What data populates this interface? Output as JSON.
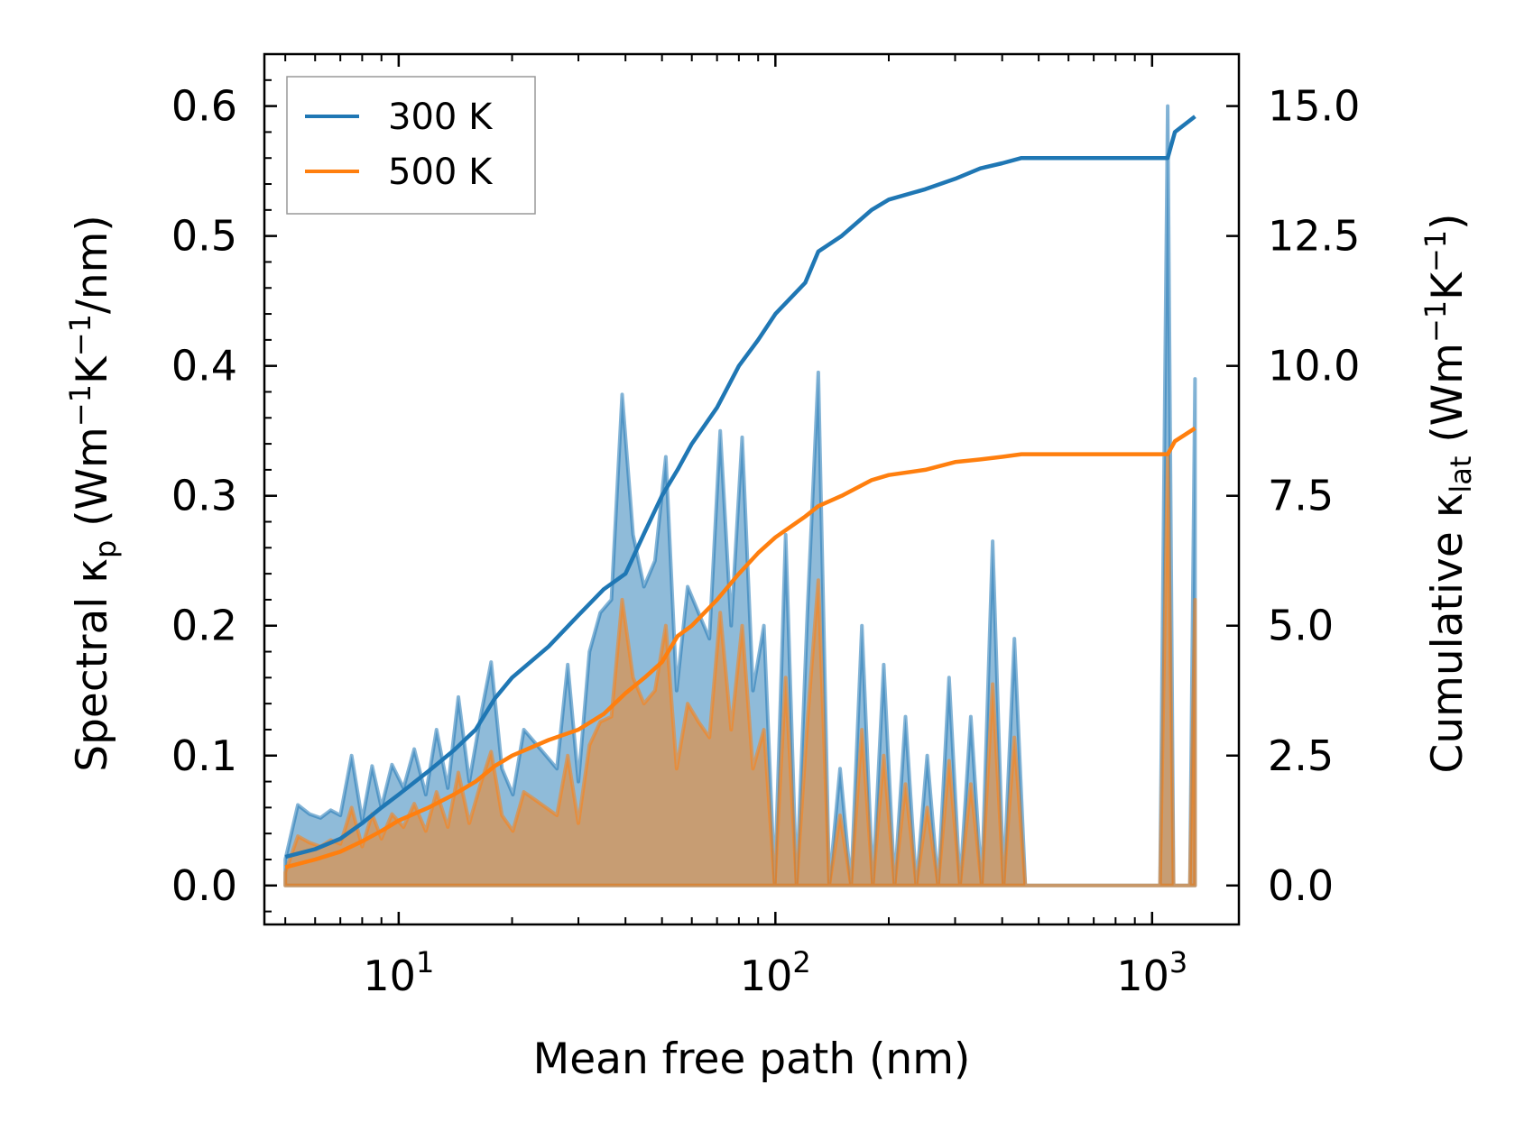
{
  "chart_data": {
    "type": "area",
    "title": "",
    "xlabel": "Mean free path (nm)",
    "ylabel_left": "Spectral κp (Wm−1K−1/nm)",
    "ylabel_right": "Cumulative κlat (Wm−1K−1)",
    "xlabel_parts": {
      "text": "Mean free path (nm)"
    },
    "ylabel_left_parts": {
      "pre": "Spectral κ",
      "sub": "p",
      "mid1": " (Wm",
      "sup1": "−1",
      "mid2": "K",
      "sup2": "−1",
      "post": "/nm)"
    },
    "ylabel_right_parts": {
      "pre": "Cumulative κ",
      "sub": "lat",
      "mid1": " (Wm",
      "sup1": "−1",
      "mid2": "K",
      "sup2": "−1",
      "post": ")"
    },
    "xscale": "log",
    "xlim": [
      4.4,
      1700
    ],
    "ylim_left": [
      -0.03,
      0.64
    ],
    "ylim_right": [
      -0.75,
      16.0
    ],
    "x_ticks": [
      {
        "base": "10",
        "exp": "1",
        "value": 10
      },
      {
        "base": "10",
        "exp": "2",
        "value": 100
      },
      {
        "base": "10",
        "exp": "3",
        "value": 1000
      }
    ],
    "y_left_ticks": [
      "0.0",
      "0.1",
      "0.2",
      "0.3",
      "0.4",
      "0.5",
      "0.6"
    ],
    "y_right_ticks": [
      "0.0",
      "2.5",
      "5.0",
      "7.5",
      "10.0",
      "12.5",
      "15.0"
    ],
    "legend": {
      "position": "top-left",
      "entries": [
        "300 K",
        "500 K"
      ]
    },
    "colors": {
      "300K": "#1f77b4",
      "500K": "#ff7f0e",
      "fill300": "#1f77b4",
      "fill500": "#ff7f0e"
    },
    "spectral_x": [
      5.0,
      5.4,
      5.8,
      6.2,
      6.6,
      7.0,
      7.5,
      8.0,
      8.5,
      9.0,
      9.6,
      10.3,
      11.0,
      11.8,
      12.6,
      13.5,
      14.4,
      15.4,
      16.5,
      17.6,
      18.8,
      20.1,
      21.5,
      23.0,
      24.6,
      26.3,
      28.1,
      30.0,
      32.1,
      34.3,
      36.7,
      39.2,
      41.9,
      44.8,
      47.9,
      51.2,
      54.7,
      58.5,
      62.5,
      66.8,
      71.4,
      76.3,
      81.6,
      87.2,
      93.2,
      99.6,
      106.5,
      113.8,
      121.6,
      130.0,
      139.0,
      148.5,
      158.8,
      169.7,
      181.4,
      193.9,
      207.2,
      221.5,
      236.7,
      253.0,
      270.5,
      289.1,
      309.0,
      330.2,
      353.0,
      377.3,
      403.3,
      431.0,
      460.7,
      600,
      800,
      1050,
      1100,
      1140,
      1180,
      1220,
      1260,
      1300
    ],
    "spectral_300K": [
      0.02,
      0.062,
      0.055,
      0.052,
      0.058,
      0.054,
      0.1,
      0.05,
      0.092,
      0.06,
      0.093,
      0.075,
      0.105,
      0.07,
      0.12,
      0.075,
      0.145,
      0.08,
      0.13,
      0.172,
      0.09,
      0.07,
      0.12,
      0.11,
      0.1,
      0.09,
      0.17,
      0.08,
      0.18,
      0.21,
      0.22,
      0.378,
      0.27,
      0.23,
      0.25,
      0.33,
      0.15,
      0.23,
      0.21,
      0.19,
      0.35,
      0.2,
      0.345,
      0.15,
      0.2,
      0.0,
      0.27,
      0.0,
      0.21,
      0.395,
      0.0,
      0.09,
      0.0,
      0.2,
      0.0,
      0.17,
      0.0,
      0.13,
      0.0,
      0.1,
      0.0,
      0.16,
      0.0,
      0.13,
      0.0,
      0.265,
      0.0,
      0.19,
      0.0,
      0.0,
      0.0,
      0.0,
      0.6,
      0.0,
      0.0,
      0.0,
      0.0,
      0.39
    ],
    "spectral_500K": [
      0.01,
      0.038,
      0.033,
      0.03,
      0.035,
      0.032,
      0.06,
      0.03,
      0.055,
      0.036,
      0.055,
      0.045,
      0.063,
      0.042,
      0.072,
      0.045,
      0.087,
      0.048,
      0.078,
      0.103,
      0.054,
      0.042,
      0.072,
      0.066,
      0.06,
      0.054,
      0.1,
      0.048,
      0.108,
      0.126,
      0.13,
      0.22,
      0.16,
      0.14,
      0.15,
      0.2,
      0.09,
      0.14,
      0.126,
      0.114,
      0.21,
      0.12,
      0.2,
      0.09,
      0.12,
      0.0,
      0.16,
      0.0,
      0.126,
      0.235,
      0.0,
      0.054,
      0.0,
      0.12,
      0.0,
      0.1,
      0.0,
      0.078,
      0.0,
      0.06,
      0.0,
      0.096,
      0.0,
      0.078,
      0.0,
      0.155,
      0.0,
      0.114,
      0.0,
      0.0,
      0.0,
      0.0,
      0.33,
      0.0,
      0.0,
      0.0,
      0.0,
      0.22
    ],
    "cumulative_x": [
      5.0,
      6.0,
      7.0,
      8.0,
      9.0,
      10.0,
      12.0,
      14.0,
      16.0,
      18.0,
      20.0,
      25.0,
      30.0,
      35.0,
      40.0,
      45.0,
      50.0,
      55.0,
      60.0,
      70.0,
      80.0,
      90.0,
      100.0,
      120.0,
      130.0,
      150.0,
      180.0,
      200.0,
      250.0,
      300.0,
      350.0,
      400.0,
      450.0,
      1100.0,
      1150.0,
      1300.0
    ],
    "cumulative_300K": [
      0.55,
      0.7,
      0.9,
      1.2,
      1.5,
      1.75,
      2.2,
      2.6,
      3.0,
      3.6,
      4.0,
      4.6,
      5.2,
      5.7,
      6.0,
      6.8,
      7.5,
      8.0,
      8.5,
      9.2,
      10.0,
      10.5,
      11.0,
      11.6,
      12.2,
      12.5,
      13.0,
      13.2,
      13.4,
      13.6,
      13.8,
      13.9,
      14.0,
      14.0,
      14.5,
      14.8
    ],
    "cumulative_500K": [
      0.35,
      0.5,
      0.65,
      0.85,
      1.05,
      1.25,
      1.5,
      1.75,
      2.0,
      2.3,
      2.5,
      2.8,
      3.0,
      3.3,
      3.7,
      4.0,
      4.3,
      4.8,
      5.0,
      5.5,
      6.0,
      6.4,
      6.7,
      7.1,
      7.3,
      7.5,
      7.8,
      7.9,
      8.0,
      8.15,
      8.2,
      8.25,
      8.3,
      8.3,
      8.55,
      8.8
    ]
  }
}
